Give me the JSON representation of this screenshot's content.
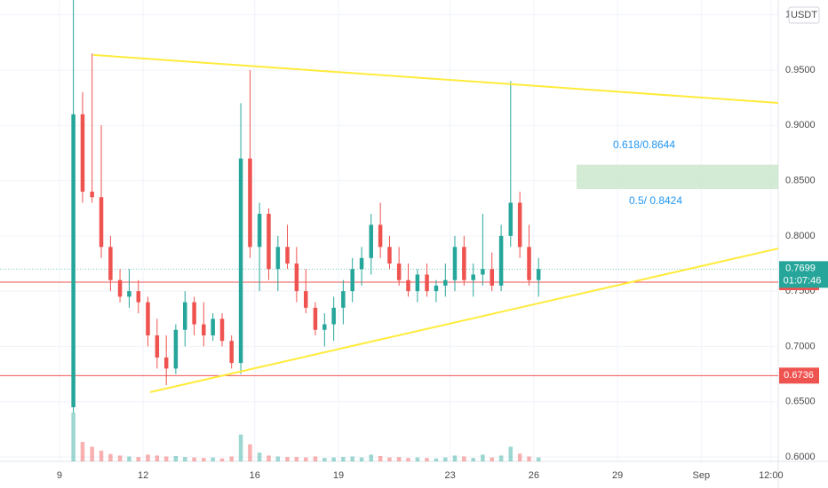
{
  "chart_data": {
    "type": "candlestick",
    "currency": "USDT",
    "xlim": [
      6.87,
      34.76
    ],
    "ylim": [
      0.596,
      1.0134
    ],
    "xticks": [
      9,
      12,
      16,
      19,
      23,
      26,
      29,
      {
        "value": 32,
        "label": "Sep"
      },
      {
        "value": 34.5,
        "label": "12:00"
      }
    ],
    "yticks": [
      {
        "value": 0.6,
        "label": "0.6000"
      },
      {
        "value": 0.65,
        "label": "0.6500"
      },
      {
        "value": 0.7,
        "label": "0.7000"
      },
      {
        "value": 0.75,
        "label": "0.7500"
      },
      {
        "value": 0.8,
        "label": "0.8000"
      },
      {
        "value": 0.85,
        "label": "0.8500"
      },
      {
        "value": 0.9,
        "label": "0.9000"
      },
      {
        "value": 0.95,
        "label": "0.9500"
      },
      1
    ],
    "grid": true,
    "up_color": "#26a69a",
    "down_color": "#ef5350",
    "x": [
      9.5,
      9.83,
      10.17,
      10.5,
      10.83,
      11.17,
      11.5,
      11.83,
      12.17,
      12.5,
      12.83,
      13.17,
      13.5,
      13.83,
      14.17,
      14.5,
      14.83,
      15.17,
      15.5,
      15.83,
      16.17,
      16.5,
      16.83,
      17.17,
      17.5,
      17.83,
      18.17,
      18.5,
      18.83,
      19.17,
      19.5,
      19.83,
      20.17,
      20.5,
      20.83,
      21.17,
      21.5,
      21.83,
      22.17,
      22.5,
      22.83,
      23.17,
      23.5,
      23.83,
      24.17,
      24.5,
      24.83,
      25.17,
      25.5,
      25.83,
      26.17
    ],
    "candles": [
      [
        0.645,
        1.05,
        0.64,
        0.91
      ],
      [
        0.91,
        0.93,
        0.83,
        0.84
      ],
      [
        0.84,
        0.965,
        0.83,
        0.835
      ],
      [
        0.835,
        0.9,
        0.78,
        0.79
      ],
      [
        0.79,
        0.8,
        0.75,
        0.76
      ],
      [
        0.76,
        0.77,
        0.74,
        0.745
      ],
      [
        0.745,
        0.77,
        0.735,
        0.75
      ],
      [
        0.75,
        0.76,
        0.73,
        0.74
      ],
      [
        0.74,
        0.745,
        0.7,
        0.71
      ],
      [
        0.71,
        0.725,
        0.68,
        0.69
      ],
      [
        0.69,
        0.71,
        0.665,
        0.68
      ],
      [
        0.68,
        0.72,
        0.675,
        0.715
      ],
      [
        0.715,
        0.75,
        0.7,
        0.74
      ],
      [
        0.74,
        0.745,
        0.71,
        0.72
      ],
      [
        0.72,
        0.74,
        0.7,
        0.71
      ],
      [
        0.71,
        0.73,
        0.705,
        0.725
      ],
      [
        0.725,
        0.73,
        0.7,
        0.705
      ],
      [
        0.705,
        0.71,
        0.68,
        0.685
      ],
      [
        0.685,
        0.92,
        0.675,
        0.87
      ],
      [
        0.87,
        0.95,
        0.78,
        0.79
      ],
      [
        0.79,
        0.83,
        0.75,
        0.82
      ],
      [
        0.82,
        0.825,
        0.76,
        0.77
      ],
      [
        0.77,
        0.8,
        0.75,
        0.79
      ],
      [
        0.79,
        0.81,
        0.77,
        0.775
      ],
      [
        0.775,
        0.79,
        0.74,
        0.75
      ],
      [
        0.75,
        0.77,
        0.73,
        0.735
      ],
      [
        0.735,
        0.74,
        0.71,
        0.715
      ],
      [
        0.715,
        0.73,
        0.7,
        0.72
      ],
      [
        0.72,
        0.745,
        0.705,
        0.735
      ],
      [
        0.735,
        0.76,
        0.72,
        0.75
      ],
      [
        0.75,
        0.78,
        0.74,
        0.77
      ],
      [
        0.77,
        0.79,
        0.755,
        0.78
      ],
      [
        0.78,
        0.82,
        0.765,
        0.81
      ],
      [
        0.81,
        0.83,
        0.78,
        0.79
      ],
      [
        0.79,
        0.8,
        0.77,
        0.775
      ],
      [
        0.775,
        0.79,
        0.755,
        0.76
      ],
      [
        0.76,
        0.775,
        0.745,
        0.75
      ],
      [
        0.75,
        0.77,
        0.74,
        0.765
      ],
      [
        0.765,
        0.775,
        0.745,
        0.75
      ],
      [
        0.75,
        0.76,
        0.74,
        0.755
      ],
      [
        0.755,
        0.775,
        0.745,
        0.76
      ],
      [
        0.76,
        0.8,
        0.75,
        0.79
      ],
      [
        0.79,
        0.8,
        0.755,
        0.76
      ],
      [
        0.76,
        0.775,
        0.745,
        0.765
      ],
      [
        0.765,
        0.82,
        0.755,
        0.77
      ],
      [
        0.77,
        0.785,
        0.75,
        0.755
      ],
      [
        0.755,
        0.81,
        0.75,
        0.8
      ],
      [
        0.8,
        0.94,
        0.79,
        0.83
      ],
      [
        0.83,
        0.84,
        0.78,
        0.79
      ],
      [
        0.79,
        0.81,
        0.755,
        0.76
      ],
      [
        0.76,
        0.78,
        0.745,
        0.77
      ]
    ],
    "volume": [
      100,
      40,
      30,
      22,
      15,
      12,
      10,
      9,
      14,
      12,
      10,
      11,
      9,
      8,
      7,
      8,
      6,
      10,
      55,
      35,
      18,
      12,
      10,
      9,
      9,
      8,
      10,
      7,
      8,
      9,
      10,
      8,
      14,
      11,
      8,
      9,
      7,
      8,
      7,
      6,
      8,
      12,
      10,
      7,
      14,
      8,
      12,
      30,
      16,
      10,
      8
    ],
    "trendlines": [
      {
        "color": "#ffeb3b",
        "points": [
          [
            10.21,
            0.9637
          ],
          [
            34.76,
            0.9203
          ]
        ]
      },
      {
        "color": "#ffeb3b",
        "points": [
          [
            12.25,
            0.6586
          ],
          [
            34.76,
            0.7886
          ]
        ]
      }
    ],
    "price_lines": [
      {
        "value": 0.7581,
        "color": "#ef5350"
      },
      {
        "value": 0.6736,
        "color": "#ef5350"
      }
    ],
    "last_price": {
      "value": 0.7699,
      "countdown": "01:07:46",
      "color": "#26a69a"
    },
    "zone": {
      "x0": 27.53,
      "top": 0.8644,
      "bottom": 0.8424,
      "color": "#c8e6c9",
      "labels": [
        "0.618/0.8644",
        "0.5/ 0.8424"
      ]
    }
  }
}
